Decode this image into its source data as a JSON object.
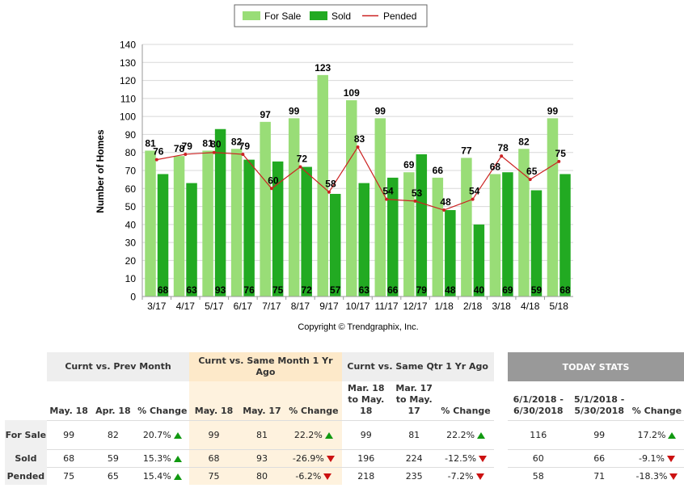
{
  "chart_data": {
    "type": "bar",
    "categories": [
      "3/17",
      "4/17",
      "5/17",
      "6/17",
      "7/17",
      "8/17",
      "9/17",
      "10/17",
      "11/17",
      "12/17",
      "1/18",
      "2/18",
      "3/18",
      "4/18",
      "5/18"
    ],
    "series": [
      {
        "name": "For Sale",
        "type": "bar",
        "color": "#99dd77",
        "values": [
          81,
          78,
          81,
          82,
          97,
          99,
          123,
          109,
          99,
          69,
          66,
          77,
          68,
          82,
          99
        ]
      },
      {
        "name": "Sold",
        "type": "bar",
        "color": "#22aa22",
        "values": [
          68,
          63,
          93,
          76,
          75,
          72,
          57,
          63,
          66,
          79,
          48,
          40,
          69,
          59,
          68
        ]
      },
      {
        "name": "Pended",
        "type": "line",
        "color": "#cc2222",
        "values": [
          76,
          79,
          80,
          79,
          60,
          72,
          58,
          83,
          54,
          53,
          48,
          54,
          78,
          65,
          75
        ]
      }
    ],
    "ylabel": "Number of Homes",
    "ylim": [
      0,
      140
    ],
    "yticks": [
      0,
      10,
      20,
      30,
      40,
      50,
      60,
      70,
      80,
      90,
      100,
      110,
      120,
      130,
      140
    ],
    "grid": true,
    "legend_position": "top-center",
    "copyright": "Copyright © Trendgraphix, Inc."
  },
  "stats": {
    "headers": {
      "prev_month": "Curnt vs. Prev Month",
      "same_month": "Curnt vs. Same Month 1 Yr Ago",
      "same_qtr": "Curnt vs. Same Qtr 1 Yr Ago",
      "today": "TODAY STATS"
    },
    "subheaders": {
      "may18": "May. 18",
      "apr18": "Apr. 18",
      "pct": "% Change",
      "may18b": "May. 18",
      "may17": "May. 17",
      "qtr_cur": "Mar. 18 to May. 18",
      "qtr_prev": "Mar. 17 to May. 17",
      "today_cur": "6/1/2018 - 6/30/2018",
      "today_prev": "5/1/2018 - 5/30/2018"
    },
    "rows": [
      {
        "label": "For Sale",
        "c": [
          "99",
          "82",
          "20.7%",
          "99",
          "81",
          "22.2%",
          "99",
          "81",
          "22.2%",
          "116",
          "99",
          "17.2%"
        ],
        "dir": [
          "up",
          "up",
          "up",
          "up"
        ]
      },
      {
        "label": "Sold",
        "c": [
          "68",
          "59",
          "15.3%",
          "68",
          "93",
          "-26.9%",
          "196",
          "224",
          "-12.5%",
          "60",
          "66",
          "-9.1%"
        ],
        "dir": [
          "up",
          "down",
          "down",
          "down"
        ]
      },
      {
        "label": "Pended",
        "c": [
          "75",
          "65",
          "15.4%",
          "75",
          "80",
          "-6.2%",
          "218",
          "235",
          "-7.2%",
          "58",
          "71",
          "-18.3%"
        ],
        "dir": [
          "up",
          "down",
          "down",
          "down"
        ]
      }
    ]
  }
}
